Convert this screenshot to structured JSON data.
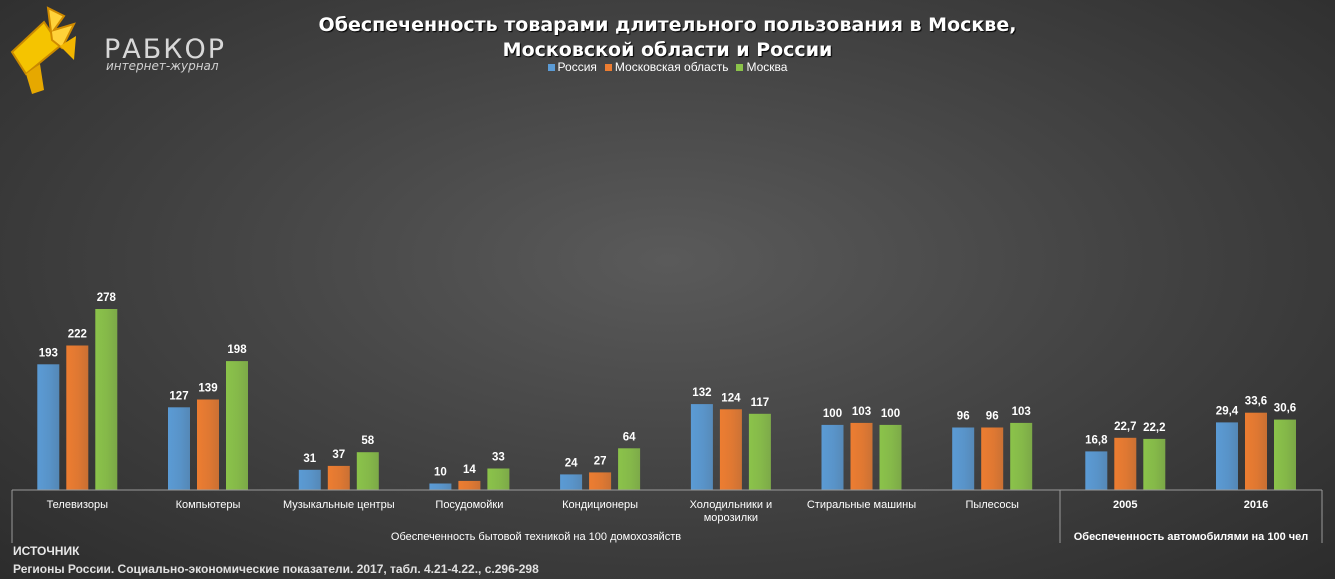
{
  "header": {
    "logo_word": "РАБКОР",
    "logo_sub": "интернет-журнал",
    "title_line1": "Обеспеченность товарами длительного пользования в Москве,",
    "title_line2": "Московской области и России"
  },
  "colors": {
    "russia": "#5b9bd5",
    "moscow_region": "#ed7d31",
    "moscow": "#8bc34a"
  },
  "chart_data": {
    "type": "bar",
    "title": "Обеспеченность товарами длительного пользования в Москве, Московской области и России",
    "categories": [
      "Телевизоры",
      "Компьютеры",
      "Музыкальные центры",
      "Посудомойки",
      "Кондиционеры",
      "Холодильники и морозилки",
      "Стиральные машины",
      "Пылесосы",
      "2005",
      "2016"
    ],
    "groups": [
      {
        "label": "Обеспеченность бытовой техникой на 100 домохозяйств",
        "categories": [
          "Телевизоры",
          "Компьютеры",
          "Музыкальные центры",
          "Посудомойки",
          "Кондиционеры",
          "Холодильники и морозилки",
          "Стиральные машины",
          "Пылесосы"
        ]
      },
      {
        "label": "Обеспеченность автомобилями на 100 чел",
        "categories": [
          "2005",
          "2016"
        ]
      }
    ],
    "series": [
      {
        "name": "Россия",
        "values": [
          193,
          127,
          31,
          10,
          24,
          132,
          100,
          96,
          16.8,
          29.4
        ],
        "labels": [
          "193",
          "127",
          "31",
          "10",
          "24",
          "132",
          "100",
          "96",
          "16,8",
          "29,4"
        ]
      },
      {
        "name": "Московская область",
        "values": [
          222,
          139,
          37,
          14,
          27,
          124,
          103,
          96,
          22.7,
          33.6
        ],
        "labels": [
          "222",
          "139",
          "37",
          "14",
          "27",
          "124",
          "103",
          "96",
          "22,7",
          "33,6"
        ]
      },
      {
        "name": "Москва",
        "values": [
          278,
          198,
          58,
          33,
          64,
          117,
          100,
          103,
          22.2,
          30.6
        ],
        "labels": [
          "278",
          "198",
          "58",
          "33",
          "64",
          "117",
          "100",
          "103",
          "22,2",
          "30,6"
        ]
      }
    ],
    "ylim": [
      0,
      280
    ],
    "grid": false,
    "legend_position": "top-center"
  },
  "source": {
    "heading": "ИСТОЧНИК",
    "text": "Регионы России. Социально-экономические показатели. 2017, табл. 4.21-4.22., с.296-298"
  }
}
